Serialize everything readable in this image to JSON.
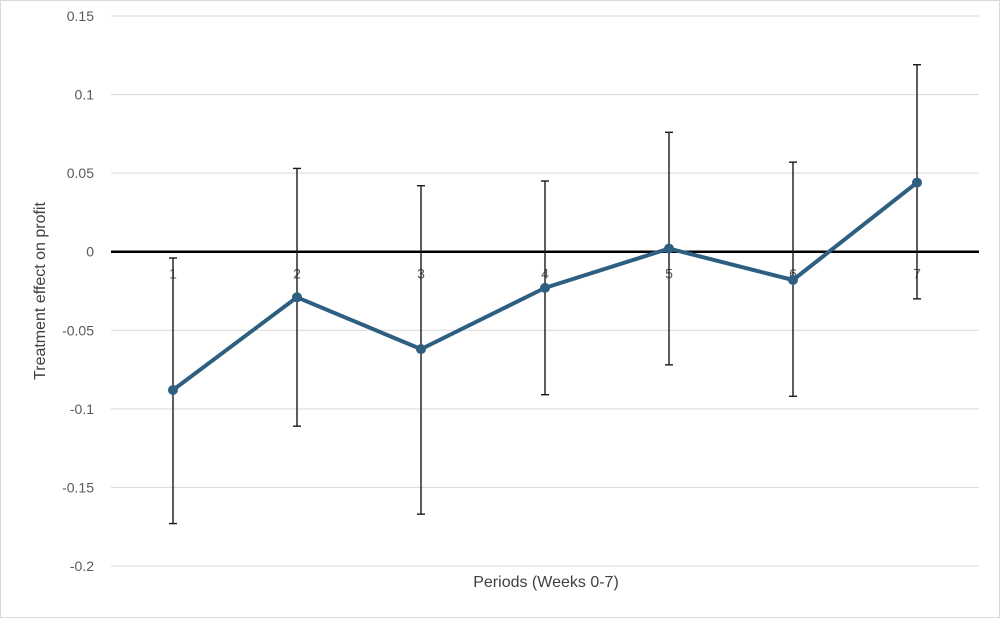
{
  "chart_data": {
    "type": "line",
    "title": "",
    "xlabel": "Periods (Weeks 0-7)",
    "ylabel": "Treatment effect on profit",
    "categories": [
      "1",
      "2",
      "3",
      "4",
      "5",
      "6",
      "7"
    ],
    "series": [
      {
        "values": [
          -0.088,
          -0.029,
          -0.062,
          -0.023,
          0.002,
          -0.018,
          0.044
        ],
        "error_low": [
          -0.173,
          -0.111,
          -0.167,
          -0.091,
          -0.072,
          -0.092,
          -0.03
        ],
        "error_high": [
          -0.004,
          0.053,
          0.042,
          0.045,
          0.076,
          0.057,
          0.119
        ],
        "color": "#2e5f80"
      }
    ],
    "ylim": [
      -0.2,
      0.15
    ],
    "yticks": [
      {
        "value": 0.15,
        "label": "0.15"
      },
      {
        "value": 0.1,
        "label": "0.1"
      },
      {
        "value": 0.05,
        "label": "0.05"
      },
      {
        "value": 0,
        "label": "0"
      },
      {
        "value": -0.05,
        "label": "-0.05"
      },
      {
        "value": -0.1,
        "label": "-0.1"
      },
      {
        "value": -0.15,
        "label": "-0.15"
      },
      {
        "value": -0.2,
        "label": "-0.2"
      }
    ],
    "grid": true,
    "legend": "none",
    "colors": {
      "gridline": "#d9d9d9",
      "zero_axis": "#000000",
      "error_bar": "#1a1a1a",
      "tick_label": "#595959"
    }
  }
}
